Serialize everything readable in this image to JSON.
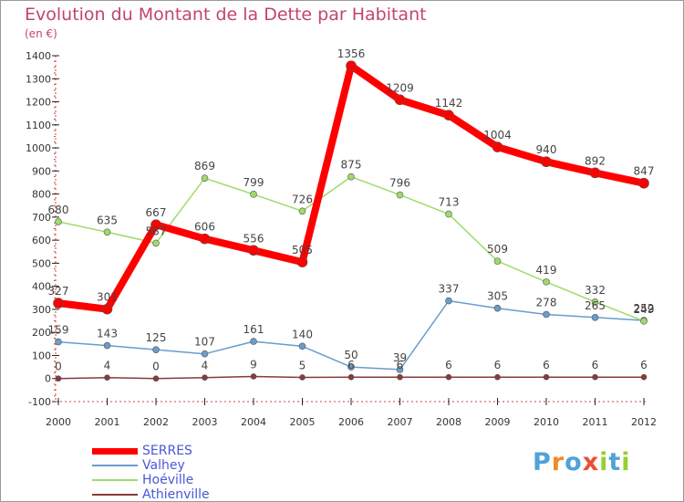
{
  "title": "Evolution du Montant de la Dette par Habitant",
  "unit_label": "(en €)",
  "logo": {
    "text": "Proxiti",
    "colors": [
      "#4fa3d9",
      "#ef8a2b",
      "#4fa3d9",
      "#e94f37",
      "#9acd32",
      "#4fa3d9",
      "#9acd32"
    ]
  },
  "chart_data": {
    "type": "line",
    "title": "Evolution du Montant de la Dette par Habitant",
    "ylabel": "(en €)",
    "xlabel": "",
    "ylim": [
      -100,
      1400
    ],
    "y_ticks": [
      -100,
      0,
      100,
      200,
      300,
      400,
      500,
      600,
      700,
      800,
      900,
      1000,
      1100,
      1200,
      1300,
      1400
    ],
    "grid": false,
    "legend_position": "bottom-left",
    "x": [
      "2000",
      "2001",
      "2002",
      "2003",
      "2004",
      "2005",
      "2006",
      "2007",
      "2008",
      "2009",
      "2010",
      "2011",
      "2012"
    ],
    "series": [
      {
        "name": "SERRES",
        "color": "#ff0000",
        "values": [
          327,
          301,
          667,
          606,
          556,
          505,
          1356,
          1209,
          1142,
          1004,
          940,
          892,
          847
        ]
      },
      {
        "name": "Valhey",
        "color": "#6a9ccc",
        "values": [
          159,
          143,
          125,
          107,
          161,
          140,
          50,
          39,
          337,
          305,
          278,
          265,
          252
        ]
      },
      {
        "name": "Hoéville",
        "color": "#9edb6a",
        "values": [
          680,
          635,
          587,
          869,
          799,
          726,
          875,
          796,
          713,
          509,
          419,
          332,
          249
        ]
      },
      {
        "name": "Athienville",
        "color": "#8a3a3a",
        "values": [
          0,
          4,
          0,
          4,
          9,
          5,
          6,
          6,
          6,
          6,
          6,
          6,
          6
        ]
      }
    ]
  }
}
